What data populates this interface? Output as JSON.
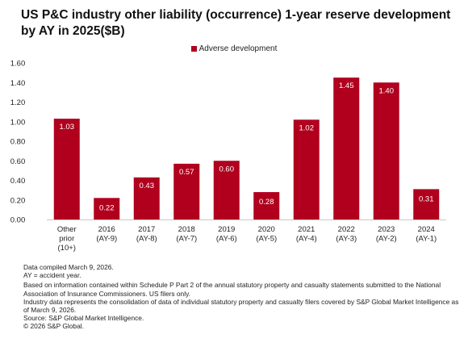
{
  "title": "US P&C industry other liability (occurrence) 1-year reserve development by AY in 2025($B)",
  "colors": {
    "bar": "#b0001e",
    "axis": "#c8c8c8",
    "text": "#222222"
  },
  "chart_data": {
    "type": "bar",
    "legend_position": "top-center",
    "grid": false,
    "series": [
      {
        "name": "Adverse development",
        "values": [
          1.03,
          0.22,
          0.43,
          0.57,
          0.6,
          0.28,
          1.02,
          1.45,
          1.4,
          0.31
        ]
      }
    ],
    "value_labels": [
      "1.03",
      "0.22",
      "0.43",
      "0.57",
      "0.60",
      "0.28",
      "1.02",
      "1.45",
      "1.40",
      "0.31"
    ],
    "categories": [
      [
        "Other",
        "prior",
        "(10+)"
      ],
      [
        "2016",
        "(AY-9)"
      ],
      [
        "2017",
        "(AY-8)"
      ],
      [
        "2018",
        "(AY-7)"
      ],
      [
        "2019",
        "(AY-6)"
      ],
      [
        "2020",
        "(AY-5)"
      ],
      [
        "2021",
        "(AY-4)"
      ],
      [
        "2022",
        "(AY-3)"
      ],
      [
        "2023",
        "(AY-2)"
      ],
      [
        "2024",
        "(AY-1)"
      ]
    ],
    "ylim": [
      0,
      1.6
    ],
    "yticks": [
      "0.00",
      "0.20",
      "0.40",
      "0.60",
      "0.80",
      "1.00",
      "1.20",
      "1.40",
      "1.60"
    ],
    "xlabel": "",
    "ylabel": ""
  },
  "footnotes": [
    "Data compiled March 9, 2026.",
    "AY = accident year.",
    "Based on information contained within Schedule P Part 2 of the annual statutory property and casualty statements submitted to the National Association of Insurance Commissioners. US filers only.",
    "Industry data represents the consolidation of data of individual statutory property and casualty filers covered by S&P Global Market Intelligence as of March 9, 2026.",
    "Source: S&P Global Market Intelligence.",
    "© 2026 S&P Global."
  ]
}
